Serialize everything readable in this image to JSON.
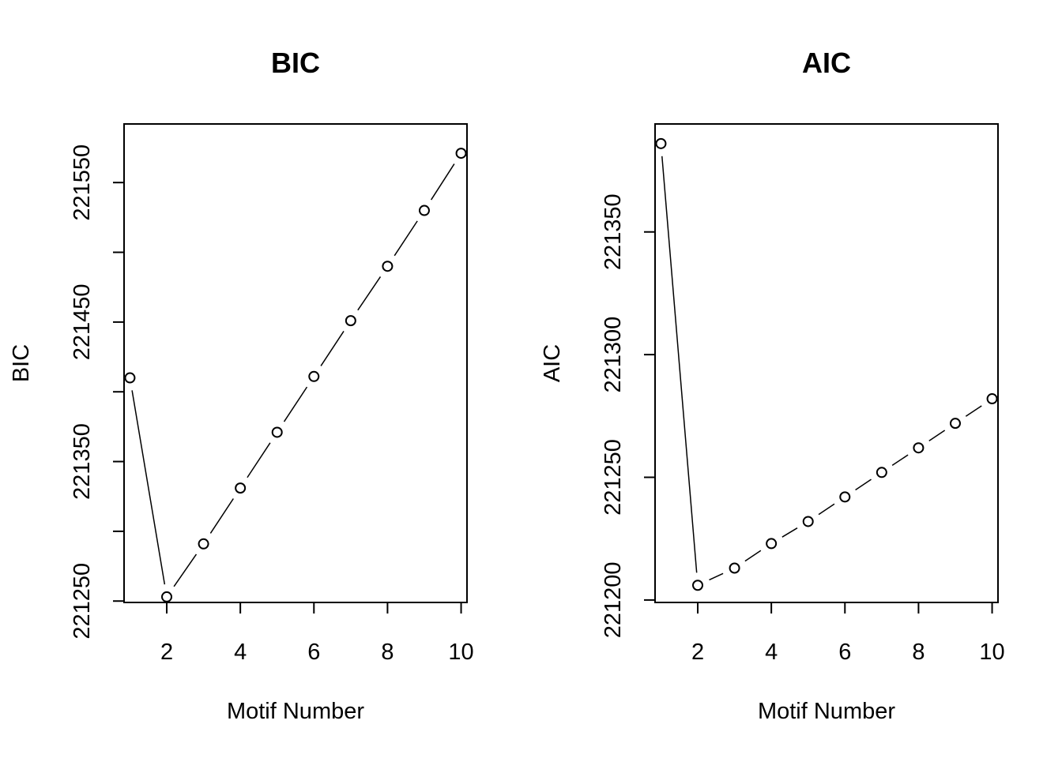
{
  "chart_data": [
    {
      "type": "line",
      "title": "BIC",
      "xlabel": "Motif Number",
      "ylabel": "BIC",
      "x": [
        1,
        2,
        3,
        4,
        5,
        6,
        7,
        8,
        9,
        10
      ],
      "series": [
        {
          "values": [
            221410,
            221253,
            221291,
            221331,
            221371,
            221411,
            221451,
            221490,
            221530,
            221571
          ]
        }
      ],
      "xlim": [
        0.84,
        10.16
      ],
      "ylim": [
        221249,
        221592
      ],
      "xticks": [
        2,
        4,
        6,
        8,
        10
      ],
      "yticks": [
        221250,
        221300,
        221350,
        221400,
        221450,
        221500,
        221550
      ],
      "yticklabels": [
        "221250",
        "",
        "221350",
        "",
        "221450",
        "",
        "221550"
      ],
      "line_style": "b",
      "grid": false
    },
    {
      "type": "line",
      "title": "AIC",
      "xlabel": "Motif Number",
      "ylabel": "AIC",
      "x": [
        1,
        2,
        3,
        4,
        5,
        6,
        7,
        8,
        9,
        10
      ],
      "series": [
        {
          "values": [
            221386,
            221206,
            221213,
            221223,
            221232,
            221242,
            221252,
            221262,
            221272,
            221282
          ]
        }
      ],
      "xlim": [
        0.84,
        10.16
      ],
      "ylim": [
        221199,
        221394
      ],
      "xticks": [
        2,
        4,
        6,
        8,
        10
      ],
      "yticks": [
        221200,
        221250,
        221300,
        221350
      ],
      "yticklabels": [
        "221200",
        "221250",
        "221300",
        "221350"
      ],
      "line_style": "b",
      "grid": false
    }
  ]
}
